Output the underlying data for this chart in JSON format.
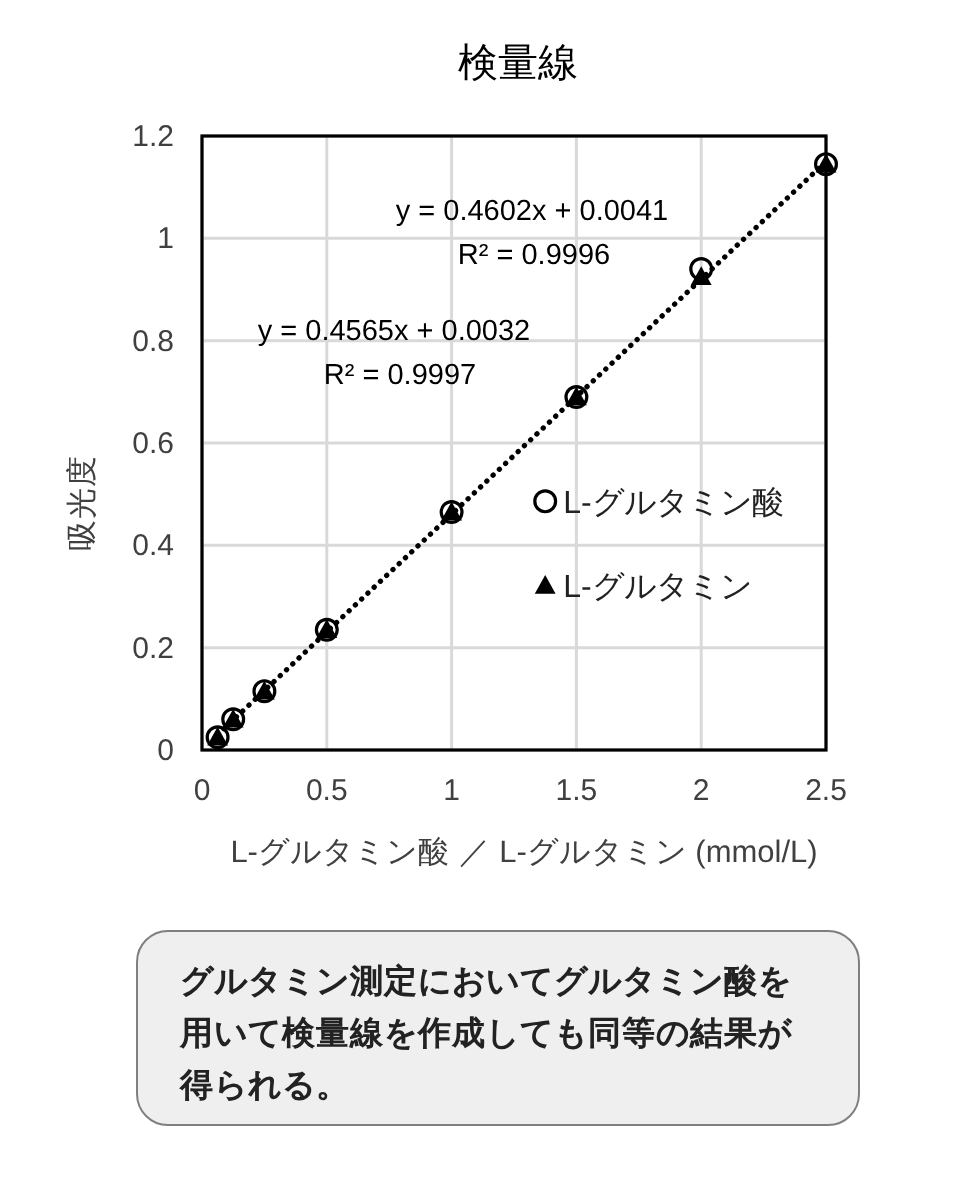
{
  "chart_data": {
    "type": "scatter",
    "title": "検量線",
    "xlabel": "L-グルタミン酸 ／ L-グルタミン (mmol/L)",
    "ylabel": "吸光度",
    "x": [
      0.0625,
      0.125,
      0.25,
      0.5,
      1,
      1.5,
      2,
      2.5
    ],
    "series": [
      {
        "name": "L-グルタミン酸",
        "color": "#000000",
        "marker": "circle",
        "values": [
          0.025,
          0.06,
          0.115,
          0.235,
          0.465,
          0.69,
          0.94,
          1.145
        ]
      },
      {
        "name": "L-グルタミン",
        "color": "#000000",
        "marker": "triangle",
        "values": [
          0.025,
          0.06,
          0.115,
          0.235,
          0.465,
          0.69,
          0.925,
          1.145
        ]
      },
      {
        "type": "line",
        "color": "#000000",
        "line_style": "dotted",
        "marker": "none",
        "x": [
          0.0625,
          2.5
        ],
        "values": [
          0.03,
          1.15
        ]
      }
    ],
    "xlim": [
      0,
      2.5
    ],
    "ylim": [
      0,
      1.2
    ],
    "xticks": [
      0,
      0.5,
      1,
      1.5,
      2,
      2.5
    ],
    "yticks": [
      0,
      0.2,
      0.4,
      0.6,
      0.8,
      1,
      1.2
    ],
    "grid": true,
    "legend": "right",
    "annotations": [
      "y = 0.4602x + 0.0041",
      "R² = 0.9996",
      "y = 0.4565x + 0.0032",
      "R² = 0.9997",
      "グルタミン測定においてグルタミン酸を用いて検量線を作成しても同等の結果が得られる。"
    ]
  }
}
